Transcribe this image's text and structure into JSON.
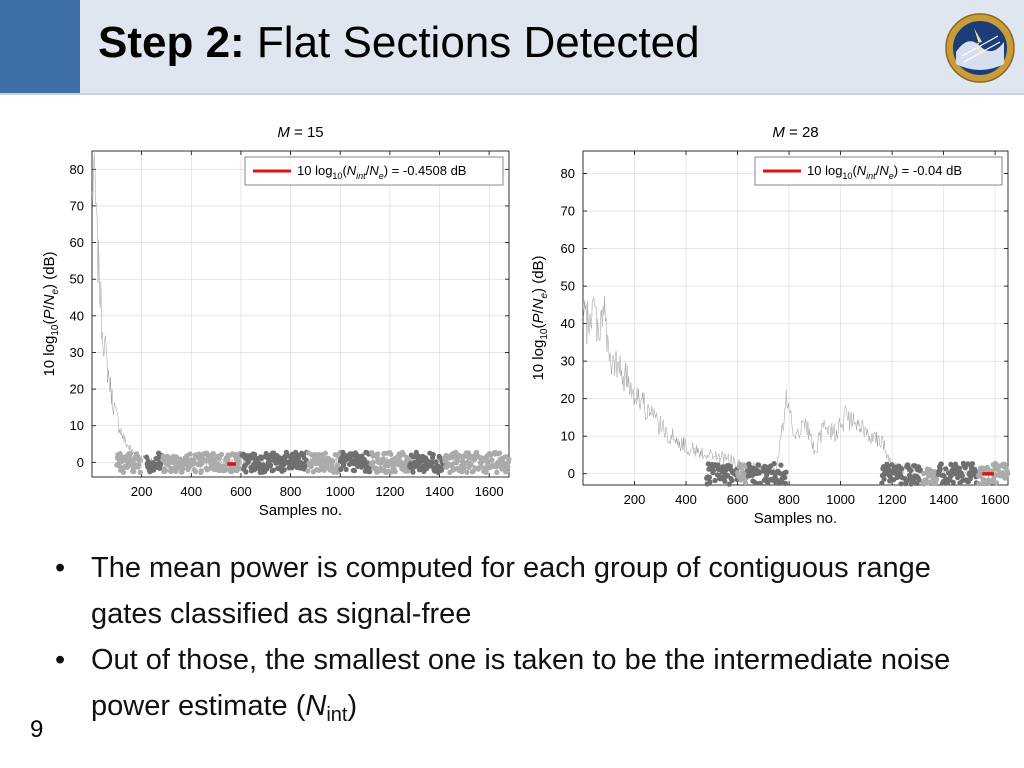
{
  "slide": {
    "title_bold": "Step 2:",
    "title_rest": " Flat Sections Detected",
    "page_number": "9",
    "colors": {
      "header_bg": "#dfe6ef",
      "header_accent": "#3e6fa6",
      "threshold_line": "#e01010"
    }
  },
  "logo": {
    "icon": "national-severe-storms-laboratory-seal-icon",
    "text": "NATIONAL SEVERE STORMS LABORATORY"
  },
  "bullets": [
    {
      "text": "The mean power is computed for each group of contiguous range gates classified as signal-free"
    },
    {
      "text_before": "Out of those, the smallest one is taken to be the intermediate noise power estimate (",
      "symbol": "N",
      "subscript": "int",
      "text_after": ")"
    }
  ],
  "chart_data": [
    {
      "type": "scatter",
      "title_var": "M",
      "title_value": " = 15",
      "xlabel": "Samples no.",
      "ylabel": "10 log10(P/Ne) (dB)",
      "ylabel_parts": {
        "prefix": "10 log",
        "sub": "10",
        "open": "(",
        "var1": "P",
        "slash": "/",
        "var2": "N",
        "var2_sub": "e",
        "suffix": ") (dB)"
      },
      "xlim": [
        0,
        1680
      ],
      "ylim": [
        -4,
        85
      ],
      "xticks": [
        200,
        400,
        600,
        800,
        1000,
        1200,
        1400,
        1600
      ],
      "yticks": [
        0,
        10,
        20,
        30,
        40,
        50,
        60,
        70,
        80
      ],
      "grid": true,
      "legend_position": "top-right",
      "legend": {
        "prefix": "10 log",
        "sub": "10",
        "open": "(",
        "num": "N",
        "num_sub": "int",
        "slash": "/",
        "den": "N",
        "den_sub": "e",
        "suffix": ") = -0.4508 dB"
      },
      "estimate_db": -0.4508,
      "estimate_x_range": [
        545,
        580
      ],
      "trace": [
        [
          0,
          72
        ],
        [
          10,
          80
        ],
        [
          20,
          60
        ],
        [
          30,
          50
        ],
        [
          40,
          38
        ],
        [
          60,
          27
        ],
        [
          80,
          18
        ],
        [
          100,
          12
        ],
        [
          130,
          6
        ],
        [
          160,
          3
        ],
        [
          200,
          1
        ],
        [
          300,
          0.5
        ],
        [
          500,
          0
        ],
        [
          700,
          0.3
        ],
        [
          900,
          0
        ],
        [
          1100,
          0.5
        ],
        [
          1300,
          0
        ],
        [
          1500,
          0.4
        ],
        [
          1680,
          0
        ]
      ],
      "flat_sections": [
        {
          "x_range": [
            100,
            195
          ],
          "shade": "light"
        },
        {
          "x_range": [
            220,
            280
          ],
          "shade": "dark"
        },
        {
          "x_range": [
            285,
            420
          ],
          "shade": "light"
        },
        {
          "x_range": [
            425,
            530
          ],
          "shade": "light"
        },
        {
          "x_range": [
            535,
            600
          ],
          "shade": "light"
        },
        {
          "x_range": [
            605,
            865
          ],
          "shade": "dark"
        },
        {
          "x_range": [
            870,
            1000
          ],
          "shade": "light"
        },
        {
          "x_range": [
            1000,
            1120
          ],
          "shade": "dark"
        },
        {
          "x_range": [
            1125,
            1280
          ],
          "shade": "light"
        },
        {
          "x_range": [
            1280,
            1420
          ],
          "shade": "dark"
        },
        {
          "x_range": [
            1420,
            1680
          ],
          "shade": "light"
        }
      ]
    },
    {
      "type": "scatter",
      "title_var": "M",
      "title_value": " = 28",
      "xlabel": "Samples no.",
      "ylabel": "10 log10(P/Ne) (dB)",
      "ylabel_parts": {
        "prefix": "10 log",
        "sub": "10",
        "open": "(",
        "var1": "P",
        "slash": "/",
        "var2": "N",
        "var2_sub": "e",
        "suffix": ") (dB)"
      },
      "xlim": [
        0,
        1650
      ],
      "ylim": [
        -3,
        86
      ],
      "xticks": [
        200,
        400,
        600,
        800,
        1000,
        1200,
        1400,
        1600
      ],
      "yticks": [
        0,
        10,
        20,
        30,
        40,
        50,
        60,
        70,
        80
      ],
      "grid": true,
      "legend_position": "top-right",
      "legend": {
        "prefix": "10 log",
        "sub": "10",
        "open": "(",
        "num": "N",
        "num_sub": "int",
        "slash": "/",
        "den": "N",
        "den_sub": "e",
        "suffix": ") = -0.04 dB"
      },
      "estimate_db": -0.04,
      "estimate_x_range": [
        1550,
        1595
      ],
      "trace": [
        [
          0,
          42
        ],
        [
          20,
          40
        ],
        [
          40,
          45
        ],
        [
          60,
          38
        ],
        [
          80,
          46
        ],
        [
          100,
          30
        ],
        [
          140,
          28
        ],
        [
          200,
          22
        ],
        [
          260,
          16
        ],
        [
          320,
          11
        ],
        [
          380,
          8
        ],
        [
          440,
          6
        ],
        [
          500,
          5
        ],
        [
          560,
          4
        ],
        [
          620,
          2
        ],
        [
          680,
          1.5
        ],
        [
          750,
          1
        ],
        [
          790,
          20
        ],
        [
          820,
          10
        ],
        [
          860,
          14
        ],
        [
          900,
          6
        ],
        [
          940,
          13
        ],
        [
          980,
          11
        ],
        [
          1020,
          15
        ],
        [
          1060,
          13
        ],
        [
          1100,
          11
        ],
        [
          1160,
          9
        ],
        [
          1200,
          2
        ],
        [
          1300,
          1
        ],
        [
          1400,
          0.5
        ],
        [
          1500,
          0.5
        ],
        [
          1600,
          0
        ]
      ],
      "flat_sections": [
        {
          "x_range": [
            480,
            600
          ],
          "shade": "dark"
        },
        {
          "x_range": [
            600,
            640
          ],
          "shade": "light"
        },
        {
          "x_range": [
            640,
            690
          ],
          "shade": "dark"
        },
        {
          "x_range": [
            700,
            790
          ],
          "shade": "dark"
        },
        {
          "x_range": [
            1160,
            1240
          ],
          "shade": "dark"
        },
        {
          "x_range": [
            1250,
            1310
          ],
          "shade": "dark"
        },
        {
          "x_range": [
            1320,
            1375
          ],
          "shade": "light"
        },
        {
          "x_range": [
            1380,
            1530
          ],
          "shade": "dark"
        },
        {
          "x_range": [
            1535,
            1650
          ],
          "shade": "light"
        }
      ]
    }
  ]
}
